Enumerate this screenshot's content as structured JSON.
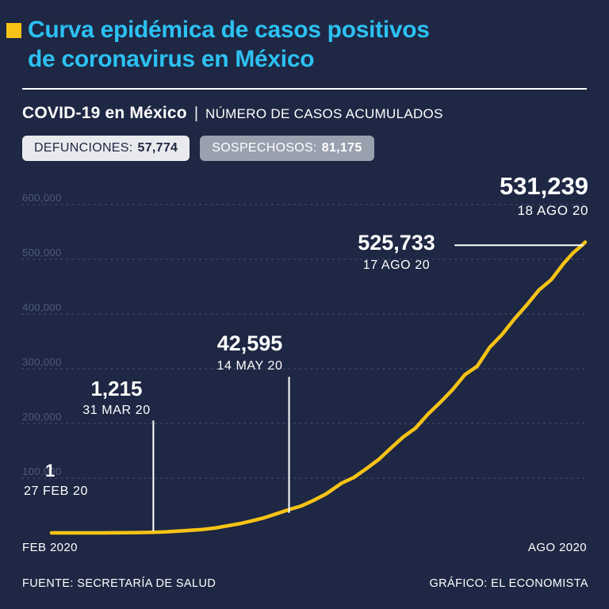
{
  "header": {
    "title_lines": [
      "Curva epidémica de casos positivos",
      "de coronavirus en México"
    ],
    "subtitle_bold": "COVID-19 en México",
    "subtitle_separator": "|",
    "subtitle_rest": "NÚMERO DE CASOS ACUMULADOS"
  },
  "badges": [
    {
      "label": "DEFUNCIONES:",
      "value": "57,774"
    },
    {
      "label": "SOSPECHOSOS:",
      "value": "81,175"
    }
  ],
  "footer": {
    "source": "FUENTE: SECRETARÍA DE SALUD",
    "credit": "GRÁFICO: EL ECONOMISTA"
  },
  "colors": {
    "background": "#1e2743",
    "accent_cyan": "#2cc1f2",
    "accent_yellow": "#f6c316",
    "badge_defunciones_bg": "#e9eaed",
    "badge_sospechosos_bg": "#99a0ae",
    "gridline": "#3a4569",
    "ytick_text": "#4e5a80",
    "annotation_text": "#ffffff"
  },
  "chart_data": {
    "type": "line",
    "title": "COVID-19 en México | Número de casos acumulados",
    "xlabel": "",
    "ylabel": "Casos acumulados",
    "ylim": [
      0,
      600000
    ],
    "grid": "horizontal-dotted",
    "x_axis": {
      "start_label": "FEB 2020",
      "end_label": "AGO 2020",
      "range": [
        "2020-02-27",
        "2020-08-18"
      ]
    },
    "y_axis": {
      "ticks": [
        {
          "value": 100000,
          "label": "100,000"
        },
        {
          "value": 200000,
          "label": "200,000"
        },
        {
          "value": 300000,
          "label": "300,000"
        },
        {
          "value": 400000,
          "label": "400,000"
        },
        {
          "value": 500000,
          "label": "500,000"
        },
        {
          "value": 600000,
          "label": "600,000"
        }
      ]
    },
    "series": [
      {
        "name": "Casos positivos acumulados",
        "color": "#f6c316",
        "points": [
          {
            "date": "2020-02-27",
            "value": 1
          },
          {
            "date": "2020-03-04",
            "value": 5
          },
          {
            "date": "2020-03-10",
            "value": 11
          },
          {
            "date": "2020-03-14",
            "value": 41
          },
          {
            "date": "2020-03-18",
            "value": 118
          },
          {
            "date": "2020-03-22",
            "value": 316
          },
          {
            "date": "2020-03-26",
            "value": 585
          },
          {
            "date": "2020-03-31",
            "value": 1215
          },
          {
            "date": "2020-04-04",
            "value": 1890
          },
          {
            "date": "2020-04-08",
            "value": 3181
          },
          {
            "date": "2020-04-12",
            "value": 4661
          },
          {
            "date": "2020-04-16",
            "value": 6297
          },
          {
            "date": "2020-04-20",
            "value": 8772
          },
          {
            "date": "2020-04-24",
            "value": 12872
          },
          {
            "date": "2020-04-28",
            "value": 16752
          },
          {
            "date": "2020-05-02",
            "value": 22088
          },
          {
            "date": "2020-05-06",
            "value": 27634
          },
          {
            "date": "2020-05-10",
            "value": 35022
          },
          {
            "date": "2020-05-14",
            "value": 42595
          },
          {
            "date": "2020-05-18",
            "value": 49219
          },
          {
            "date": "2020-05-22",
            "value": 59567
          },
          {
            "date": "2020-05-26",
            "value": 71105
          },
          {
            "date": "2020-05-31",
            "value": 90664
          },
          {
            "date": "2020-06-04",
            "value": 101238
          },
          {
            "date": "2020-06-08",
            "value": 117103
          },
          {
            "date": "2020-06-12",
            "value": 133974
          },
          {
            "date": "2020-06-16",
            "value": 154863
          },
          {
            "date": "2020-06-20",
            "value": 175202
          },
          {
            "date": "2020-06-24",
            "value": 191410
          },
          {
            "date": "2020-06-28",
            "value": 216852
          },
          {
            "date": "2020-07-02",
            "value": 238511
          },
          {
            "date": "2020-07-06",
            "value": 261750
          },
          {
            "date": "2020-07-10",
            "value": 289174
          },
          {
            "date": "2020-07-14",
            "value": 304435
          },
          {
            "date": "2020-07-18",
            "value": 338913
          },
          {
            "date": "2020-07-22",
            "value": 362274
          },
          {
            "date": "2020-07-26",
            "value": 390516
          },
          {
            "date": "2020-07-30",
            "value": 416179
          },
          {
            "date": "2020-08-03",
            "value": 443813
          },
          {
            "date": "2020-08-07",
            "value": 462690
          },
          {
            "date": "2020-08-11",
            "value": 492522
          },
          {
            "date": "2020-08-14",
            "value": 511369
          },
          {
            "date": "2020-08-17",
            "value": 525733
          },
          {
            "date": "2020-08-18",
            "value": 531239
          }
        ]
      }
    ],
    "annotations": [
      {
        "value_label": "1",
        "date_label": "27 FEB 20",
        "date": "2020-02-27",
        "value": 1
      },
      {
        "value_label": "1,215",
        "date_label": "31 MAR 20",
        "date": "2020-03-31",
        "value": 1215
      },
      {
        "value_label": "42,595",
        "date_label": "14 MAY 20",
        "date": "2020-05-14",
        "value": 42595
      },
      {
        "value_label": "525,733",
        "date_label": "17 AGO 20",
        "date": "2020-08-17",
        "value": 525733
      },
      {
        "value_label": "531,239",
        "date_label": "18 AGO 20",
        "date": "2020-08-18",
        "value": 531239
      }
    ]
  }
}
